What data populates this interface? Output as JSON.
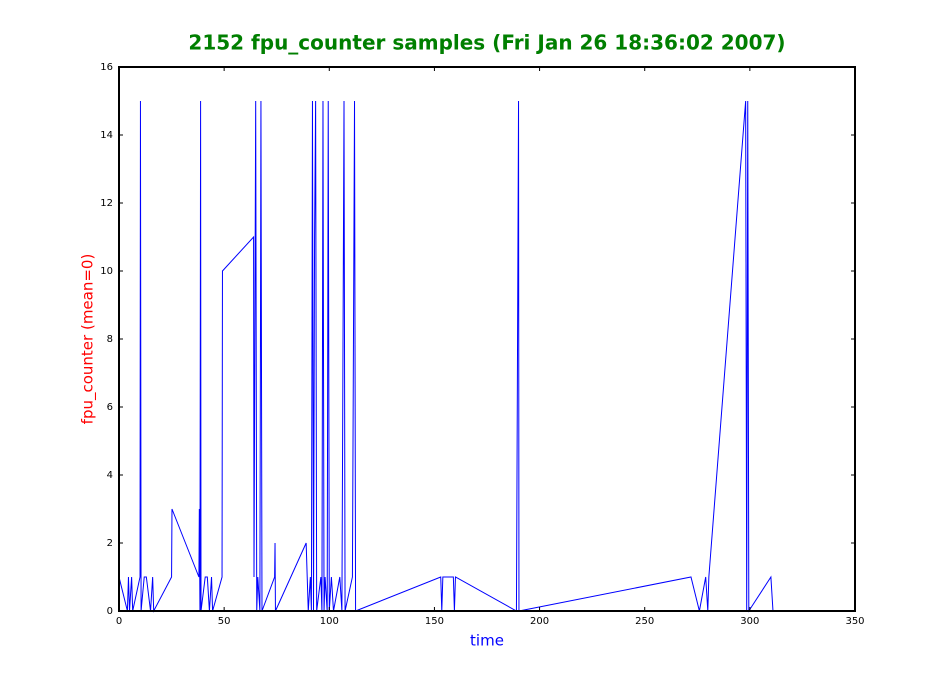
{
  "chart_data": {
    "type": "line",
    "title": "2152 fpu_counter samples (Fri Jan 26 18:36:02 2007)",
    "xlabel": "time",
    "ylabel": "fpu_counter (mean=0)",
    "title_color": "#007f00",
    "xlabel_color": "#0000ff",
    "ylabel_color": "#ff0000",
    "color": "#0000ff",
    "x": [
      0,
      4,
      4.5,
      5,
      6,
      6.5,
      10,
      10.2,
      10.5,
      12,
      13,
      15,
      16,
      16.5,
      25,
      25.2,
      38,
      38.2,
      38.5,
      38.8,
      39,
      41,
      42,
      43,
      44,
      44.5,
      49,
      49.2,
      64,
      64.2,
      65,
      65.5,
      66,
      67,
      67.5,
      68,
      74,
      74.2,
      74.4,
      89,
      89.5,
      90,
      91,
      91.5,
      92,
      92.5,
      93,
      93.5,
      94,
      96,
      96.5,
      97,
      97.5,
      98,
      99,
      99.5,
      100,
      101,
      102,
      105,
      106,
      107,
      107.5,
      111,
      112,
      112.5,
      153,
      153.5,
      154,
      159,
      159.5,
      160,
      189,
      190,
      190.2,
      272,
      276,
      279,
      280,
      280.5,
      298,
      298.5,
      299,
      299.5,
      310,
      311
    ],
    "values": [
      1,
      0,
      1,
      0,
      1,
      0,
      1,
      15,
      0,
      1,
      1,
      0,
      1,
      0,
      1,
      3,
      1,
      3,
      0,
      15,
      0,
      1,
      1,
      0,
      1,
      0,
      1,
      10,
      11,
      1,
      15,
      0,
      1,
      0,
      15,
      0,
      1,
      2,
      0,
      2,
      1,
      0,
      1,
      0,
      15,
      0,
      11,
      15,
      0,
      1,
      0,
      15,
      0,
      1,
      0,
      15,
      0,
      1,
      0,
      1,
      0,
      15,
      0,
      1,
      15,
      0,
      1,
      0,
      1,
      1,
      0,
      1,
      0,
      15,
      0,
      1,
      0,
      1,
      0,
      1,
      15,
      0,
      15,
      0,
      1,
      0
    ],
    "xlim": [
      0,
      350
    ],
    "xticks": [
      0,
      50,
      100,
      150,
      200,
      250,
      300,
      350
    ],
    "ylim": [
      0,
      16
    ],
    "yticks": [
      0,
      2,
      4,
      6,
      8,
      10,
      12,
      14,
      16
    ]
  }
}
